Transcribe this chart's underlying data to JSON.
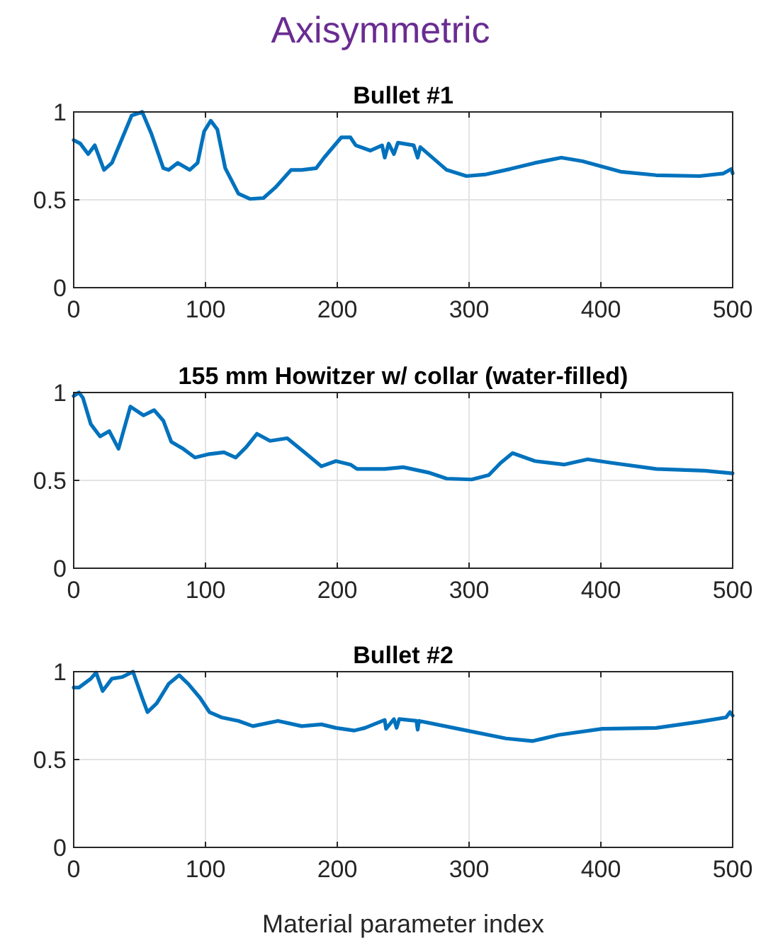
{
  "chart_data": [
    {
      "type": "line",
      "title": "Bullet #1",
      "annotations": [
        "Axisymmetric"
      ],
      "xlim": [
        0,
        500
      ],
      "ylim": [
        0,
        1
      ],
      "xticks": [
        0,
        100,
        200,
        300,
        400,
        500
      ],
      "yticks": [
        0,
        0.5,
        1
      ],
      "grid": true,
      "series": [
        {
          "color": "#0072bd",
          "x": [
            0,
            5,
            11,
            16,
            23,
            29,
            44,
            52,
            59,
            68,
            72,
            79,
            88,
            94,
            99,
            104,
            109,
            115,
            125,
            134,
            144,
            153,
            165,
            173,
            184,
            190,
            203,
            210,
            214,
            225,
            234,
            236,
            239,
            243,
            246,
            258,
            261,
            263,
            283,
            298,
            313,
            331,
            350,
            370,
            386,
            415,
            442,
            475,
            493,
            499,
            500
          ],
          "values": [
            0.84,
            0.82,
            0.76,
            0.81,
            0.67,
            0.71,
            0.98,
            1.0,
            0.875,
            0.68,
            0.67,
            0.71,
            0.67,
            0.71,
            0.89,
            0.95,
            0.9,
            0.68,
            0.535,
            0.505,
            0.51,
            0.57,
            0.67,
            0.67,
            0.68,
            0.74,
            0.855,
            0.855,
            0.81,
            0.78,
            0.81,
            0.74,
            0.82,
            0.76,
            0.825,
            0.81,
            0.74,
            0.8,
            0.67,
            0.635,
            0.645,
            0.675,
            0.71,
            0.74,
            0.72,
            0.66,
            0.64,
            0.635,
            0.65,
            0.675,
            0.65
          ]
        }
      ]
    },
    {
      "type": "line",
      "title": "155 mm Howitzer w/ collar (water-filled)",
      "xlim": [
        0,
        500
      ],
      "ylim": [
        0,
        1
      ],
      "xticks": [
        0,
        100,
        200,
        300,
        400,
        500
      ],
      "yticks": [
        0,
        0.5,
        1
      ],
      "grid": true,
      "series": [
        {
          "color": "#0072bd",
          "x": [
            0,
            4,
            7,
            13,
            20,
            27,
            34,
            43,
            53,
            61,
            68,
            74,
            83,
            92,
            103,
            114,
            123,
            131,
            139,
            149,
            162,
            175,
            188,
            199,
            210,
            215,
            236,
            250,
            269,
            283,
            302,
            315,
            324,
            333,
            350,
            372,
            390,
            408,
            442,
            479,
            500
          ],
          "values": [
            0.98,
            1.0,
            0.97,
            0.82,
            0.75,
            0.78,
            0.68,
            0.92,
            0.87,
            0.9,
            0.84,
            0.72,
            0.68,
            0.63,
            0.65,
            0.66,
            0.63,
            0.69,
            0.765,
            0.725,
            0.74,
            0.66,
            0.58,
            0.61,
            0.59,
            0.565,
            0.565,
            0.575,
            0.545,
            0.51,
            0.505,
            0.53,
            0.6,
            0.655,
            0.61,
            0.59,
            0.62,
            0.6,
            0.565,
            0.555,
            0.54
          ]
        }
      ]
    },
    {
      "type": "line",
      "title": "Bullet #2",
      "xlabel": "Material parameter index",
      "xlim": [
        0,
        500
      ],
      "ylim": [
        0,
        1
      ],
      "xticks": [
        0,
        100,
        200,
        300,
        400,
        500
      ],
      "yticks": [
        0,
        0.5,
        1
      ],
      "grid": true,
      "series": [
        {
          "color": "#0072bd",
          "x": [
            0,
            4,
            13,
            17,
            22,
            29,
            37,
            45,
            52,
            56,
            63,
            72,
            80,
            87,
            96,
            103,
            112,
            125,
            136,
            155,
            173,
            188,
            199,
            213,
            221,
            236,
            237,
            243,
            245,
            247,
            260,
            261,
            262,
            295,
            328,
            348,
            368,
            401,
            442,
            475,
            495,
            498,
            500
          ],
          "values": [
            0.91,
            0.91,
            0.96,
            0.995,
            0.89,
            0.96,
            0.97,
            1.0,
            0.85,
            0.77,
            0.82,
            0.93,
            0.98,
            0.93,
            0.85,
            0.77,
            0.74,
            0.72,
            0.69,
            0.72,
            0.69,
            0.7,
            0.68,
            0.665,
            0.68,
            0.725,
            0.675,
            0.73,
            0.68,
            0.73,
            0.72,
            0.67,
            0.72,
            0.67,
            0.62,
            0.605,
            0.64,
            0.675,
            0.68,
            0.715,
            0.74,
            0.77,
            0.75
          ]
        }
      ]
    }
  ]
}
